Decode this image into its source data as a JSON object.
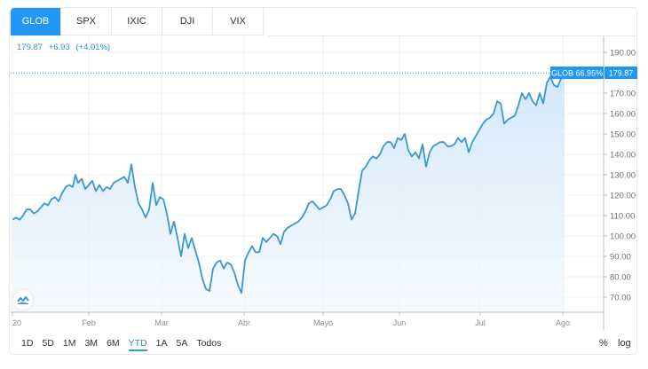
{
  "tabs": [
    {
      "label": "GLOB",
      "active": true
    },
    {
      "label": "SPX",
      "active": false
    },
    {
      "label": "IXIC",
      "active": false
    },
    {
      "label": "DJI",
      "active": false
    },
    {
      "label": "VIX",
      "active": false
    }
  ],
  "legend": {
    "price": "179.87",
    "change": "+6.93",
    "change_pct": "(+4.01%)"
  },
  "price_tag": {
    "label": "GLOB 66.95%",
    "value": "179.87"
  },
  "ranges": [
    "1D",
    "5D",
    "1M",
    "3M",
    "6M",
    "YTD",
    "1A",
    "5A",
    "Todos"
  ],
  "active_range": "YTD",
  "controls": {
    "percent": "%",
    "log": "log"
  },
  "colors": {
    "accent": "#2196f3",
    "line": "#3a97d4",
    "fill_top": "#cfe6fa",
    "grid": "#eef0f3"
  },
  "chart_data": {
    "type": "area",
    "title": "GLOB",
    "xlabel": "",
    "ylabel": "",
    "x_tick_labels": [
      "20",
      "Feb",
      "Mar",
      "Abr",
      "Mayo",
      "Jun",
      "Jul",
      "Ago"
    ],
    "y_tick_labels": [
      "190.00",
      "180.00",
      "170.00",
      "160.00",
      "150.00",
      "140.00",
      "130.00",
      "120.00",
      "110.00",
      "100.00",
      "90.00",
      "80.00",
      "70.00"
    ],
    "ylim": [
      65,
      195
    ],
    "grid": true,
    "last_value": 179.87,
    "change": 6.93,
    "change_pct": 4.01,
    "ytd_pct": 66.95,
    "series": [
      {
        "name": "GLOB",
        "points": [
          [
            14,
            108
          ],
          [
            18,
            109
          ],
          [
            22,
            108
          ],
          [
            26,
            110
          ],
          [
            30,
            113
          ],
          [
            34,
            113
          ],
          [
            38,
            111
          ],
          [
            42,
            112
          ],
          [
            46,
            114
          ],
          [
            50,
            116
          ],
          [
            54,
            115
          ],
          [
            58,
            118
          ],
          [
            62,
            119
          ],
          [
            66,
            117
          ],
          [
            70,
            121
          ],
          [
            74,
            124
          ],
          [
            78,
            125
          ],
          [
            82,
            124
          ],
          [
            85,
            130
          ],
          [
            88,
            126
          ],
          [
            92,
            128
          ],
          [
            96,
            123
          ],
          [
            100,
            125
          ],
          [
            104,
            127
          ],
          [
            108,
            122
          ],
          [
            112,
            125
          ],
          [
            116,
            122
          ],
          [
            120,
            124
          ],
          [
            124,
            123
          ],
          [
            128,
            126
          ],
          [
            132,
            127
          ],
          [
            136,
            128
          ],
          [
            140,
            129
          ],
          [
            144,
            126
          ],
          [
            148,
            135
          ],
          [
            152,
            124
          ],
          [
            156,
            116
          ],
          [
            160,
            113
          ],
          [
            164,
            109
          ],
          [
            168,
            113
          ],
          [
            172,
            126
          ],
          [
            176,
            115
          ],
          [
            180,
            119
          ],
          [
            184,
            118
          ],
          [
            188,
            111
          ],
          [
            192,
            101
          ],
          [
            196,
            107
          ],
          [
            200,
            99
          ],
          [
            204,
            90
          ],
          [
            208,
            101
          ],
          [
            212,
            94
          ],
          [
            216,
            99
          ],
          [
            220,
            93
          ],
          [
            224,
            87
          ],
          [
            228,
            79
          ],
          [
            232,
            74
          ],
          [
            236,
            73
          ],
          [
            240,
            84
          ],
          [
            244,
            87
          ],
          [
            248,
            88
          ],
          [
            252,
            84
          ],
          [
            256,
            87
          ],
          [
            260,
            86
          ],
          [
            264,
            82
          ],
          [
            268,
            76
          ],
          [
            272,
            72
          ],
          [
            276,
            88
          ],
          [
            280,
            92
          ],
          [
            284,
            95
          ],
          [
            288,
            92
          ],
          [
            292,
            92
          ],
          [
            296,
            99
          ],
          [
            300,
            97
          ],
          [
            304,
            99
          ],
          [
            308,
            101
          ],
          [
            312,
            100
          ],
          [
            316,
            96
          ],
          [
            320,
            102
          ],
          [
            324,
            104
          ],
          [
            328,
            105
          ],
          [
            332,
            106
          ],
          [
            336,
            107
          ],
          [
            340,
            109
          ],
          [
            344,
            112
          ],
          [
            348,
            116
          ],
          [
            352,
            117
          ],
          [
            356,
            115
          ],
          [
            360,
            113
          ],
          [
            364,
            114
          ],
          [
            368,
            115
          ],
          [
            372,
            118
          ],
          [
            376,
            122
          ],
          [
            380,
            123
          ],
          [
            384,
            123
          ],
          [
            388,
            120
          ],
          [
            392,
            116
          ],
          [
            396,
            108
          ],
          [
            400,
            111
          ],
          [
            404,
            122
          ],
          [
            408,
            132
          ],
          [
            412,
            134
          ],
          [
            416,
            137
          ],
          [
            420,
            139
          ],
          [
            424,
            138
          ],
          [
            428,
            140
          ],
          [
            432,
            144
          ],
          [
            436,
            146
          ],
          [
            440,
            146
          ],
          [
            444,
            143
          ],
          [
            448,
            148
          ],
          [
            452,
            147
          ],
          [
            456,
            150
          ],
          [
            460,
            142
          ],
          [
            464,
            139
          ],
          [
            468,
            141
          ],
          [
            472,
            138
          ],
          [
            476,
            145
          ],
          [
            480,
            134
          ],
          [
            484,
            141
          ],
          [
            488,
            144
          ],
          [
            492,
            145
          ],
          [
            496,
            146
          ],
          [
            500,
            146
          ],
          [
            504,
            144
          ],
          [
            508,
            144
          ],
          [
            512,
            145
          ],
          [
            516,
            148
          ],
          [
            520,
            146
          ],
          [
            524,
            148
          ],
          [
            528,
            141
          ],
          [
            532,
            146
          ],
          [
            536,
            149
          ],
          [
            540,
            152
          ],
          [
            544,
            155
          ],
          [
            548,
            157
          ],
          [
            552,
            158
          ],
          [
            556,
            160
          ],
          [
            560,
            166
          ],
          [
            564,
            165
          ],
          [
            568,
            155
          ],
          [
            572,
            157
          ],
          [
            576,
            158
          ],
          [
            580,
            159
          ],
          [
            584,
            164
          ],
          [
            588,
            170
          ],
          [
            592,
            167
          ],
          [
            596,
            170
          ],
          [
            600,
            166
          ],
          [
            604,
            164
          ],
          [
            608,
            170
          ],
          [
            612,
            165
          ],
          [
            616,
            175
          ],
          [
            620,
            178
          ],
          [
            624,
            174
          ],
          [
            628,
            173
          ],
          [
            632,
            177
          ],
          [
            636,
            179.87
          ]
        ]
      }
    ]
  }
}
